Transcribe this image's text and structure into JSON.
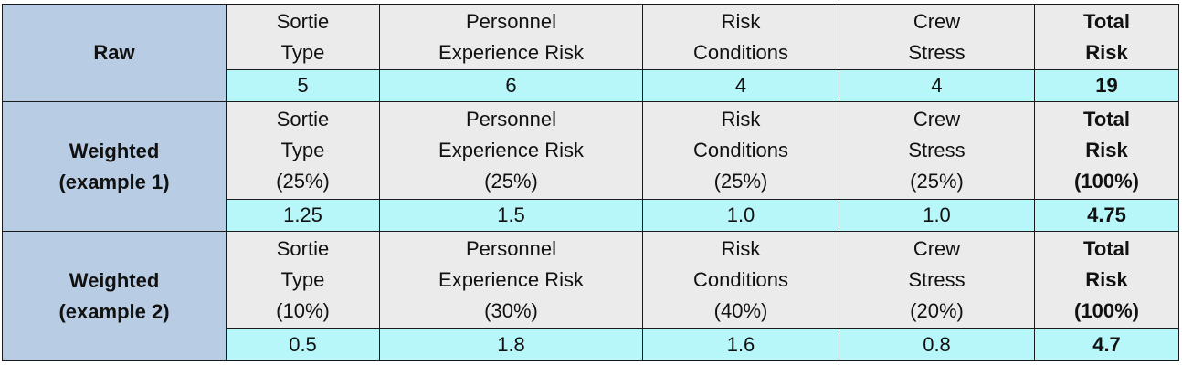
{
  "sections": [
    {
      "label": [
        "Raw"
      ],
      "headers": [
        [
          "Sortie",
          "Type"
        ],
        [
          "Personnel",
          "Experience Risk"
        ],
        [
          "Risk",
          "Conditions"
        ],
        [
          "Crew",
          "Stress"
        ],
        [
          "Total",
          "Risk"
        ]
      ],
      "values": [
        "5",
        "6",
        "4",
        "4",
        "19"
      ]
    },
    {
      "label": [
        "Weighted",
        "(example 1)"
      ],
      "headers": [
        [
          "Sortie",
          "Type",
          "(25%)"
        ],
        [
          "Personnel",
          "Experience Risk",
          "(25%)"
        ],
        [
          "Risk",
          "Conditions",
          "(25%)"
        ],
        [
          "Crew",
          "Stress",
          "(25%)"
        ],
        [
          "Total",
          "Risk",
          "(100%)"
        ]
      ],
      "values": [
        "1.25",
        "1.5",
        "1.0",
        "1.0",
        "4.75"
      ]
    },
    {
      "label": [
        "Weighted",
        "(example 2)"
      ],
      "headers": [
        [
          "Sortie",
          "Type",
          "(10%)"
        ],
        [
          "Personnel",
          "Experience Risk",
          "(30%)"
        ],
        [
          "Risk",
          "Conditions",
          "(40%)"
        ],
        [
          "Crew",
          "Stress",
          "(20%)"
        ],
        [
          "Total",
          "Risk",
          "(100%)"
        ]
      ],
      "values": [
        "0.5",
        "1.8",
        "1.6",
        "0.8",
        "4.7"
      ]
    }
  ],
  "colors": {
    "row_header_bg": "#b8cce4",
    "header_cell_bg": "#ebebeb",
    "value_cell_bg": "#b7f7f9",
    "border": "#1a1a1a"
  }
}
